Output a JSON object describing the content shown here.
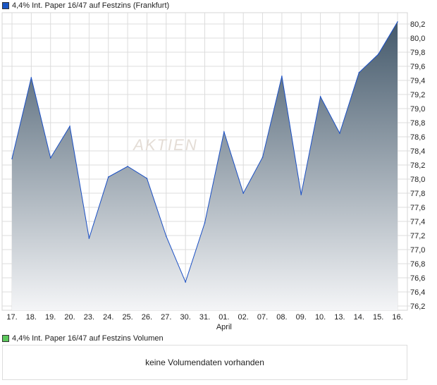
{
  "chart_data": {
    "type": "area",
    "title": "4,4% Int. Paper 16/47 auf Festzins (Frankfurt)",
    "categories": [
      "17.",
      "18.",
      "19.",
      "20.",
      "23.",
      "24.",
      "25.",
      "26.",
      "27.",
      "30.",
      "31.",
      "01.",
      "02.",
      "07.",
      "08.",
      "09.",
      "10.",
      "13.",
      "14.",
      "15.",
      "16."
    ],
    "month_label": "April",
    "values": [
      78.29,
      79.44,
      78.3,
      78.75,
      77.16,
      78.03,
      78.18,
      78.01,
      77.19,
      76.54,
      77.38,
      78.67,
      77.8,
      78.31,
      79.46,
      77.78,
      79.17,
      78.65,
      79.51,
      79.77,
      80.23
    ],
    "ylim": [
      76.1,
      80.4
    ],
    "yticks": [
      "76,2",
      "76,4",
      "76,6",
      "76,8",
      "77,0",
      "77,2",
      "77,4",
      "77,6",
      "77,8",
      "78,0",
      "78,2",
      "78,4",
      "78,6",
      "78,8",
      "79,0",
      "79,2",
      "79,4",
      "79,6",
      "79,8",
      "80,0",
      "80,2"
    ],
    "ytick_values": [
      76.2,
      76.4,
      76.6,
      76.8,
      77.0,
      77.2,
      77.4,
      77.6,
      77.8,
      78.0,
      78.2,
      78.4,
      78.6,
      78.8,
      79.0,
      79.2,
      79.4,
      79.6,
      79.8,
      80.0,
      80.2
    ],
    "grid": true,
    "line_color": "#1a4fc4",
    "fill_top": "#44596b",
    "fill_bottom": "#f4f5f7"
  },
  "legend": {
    "price": "4,4% Int. Paper 16/47 auf Festzins (Frankfurt)",
    "price_color": "#1a56c4",
    "volume": "4,4% Int. Paper 16/47 auf Festzins Volumen",
    "volume_color": "#5cc85c"
  },
  "volume": {
    "message": "keine Volumendaten vorhanden"
  },
  "watermark": "AKTIEN"
}
